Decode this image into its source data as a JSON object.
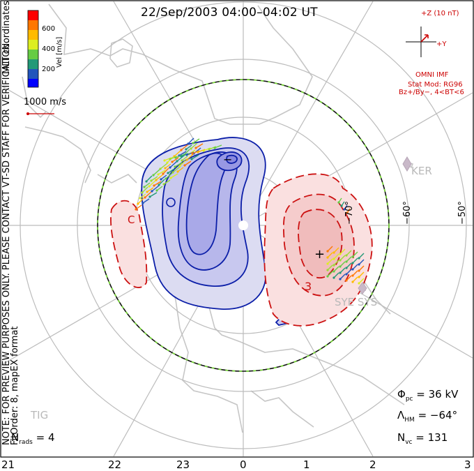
{
  "title": "22/Sep/2003 04:00–04:02 UT",
  "colorbar": {
    "label": "Vel [m/s]",
    "ticks": [
      "600",
      "400",
      "200"
    ],
    "colors": [
      "#ff0000",
      "#ff8800",
      "#ffcc00",
      "#99dd33",
      "#33bb55",
      "#2288aa",
      "#3355cc",
      "#0000ee"
    ]
  },
  "coordinates_label": "MLT coordinates",
  "scale_vector_label": "1000 m/s",
  "preview_note": "NOTE: FOR PREVIEW PURPOSES ONLY. PLEASE CONTACT VT-SD STAFF FOR VERIFICATION.",
  "fit_label": "FitOrder: 8, mapEX format",
  "imf": {
    "z_label": "+Z (10 nT)",
    "y_label": "+Y",
    "source": "OMNI IMF",
    "stat_mod": "Stat Mod: RG96",
    "stat_cond": "Bz+/By−, 4<BT<6"
  },
  "stations": {
    "ker": "KER",
    "sye_sys": "SYE SYS",
    "tig": "TIG"
  },
  "lat_labels": {
    "lat70": "−70°",
    "lat60": "−60°",
    "lat50": "−50°"
  },
  "contour_labels": {
    "neg": "−",
    "pos": "+",
    "c_left": "C",
    "c_left2": "C",
    "three": "3"
  },
  "stats": {
    "phi_sym": "Φ",
    "phi_sub": "pc",
    "phi_val": "= 36 kV",
    "lambda_sym": "Λ",
    "lambda_sub": "HM",
    "lambda_val": "= −64°",
    "nvc_sym": "N",
    "nvc_sub": "vc",
    "nvc_val": "= 131",
    "nrads_sym": "N",
    "nrads_sub": "rads",
    "nrads_val": "= 4"
  },
  "mlt_axis": [
    "21",
    "22",
    "23",
    "0",
    "1",
    "2",
    "3"
  ],
  "colors": {
    "neg_fill": "#c9c9f0",
    "pos_fill": "#f6cfcf",
    "neg_line": "#0b1ea8",
    "pos_line": "#cc1111",
    "grid": "#bcbcbc"
  }
}
